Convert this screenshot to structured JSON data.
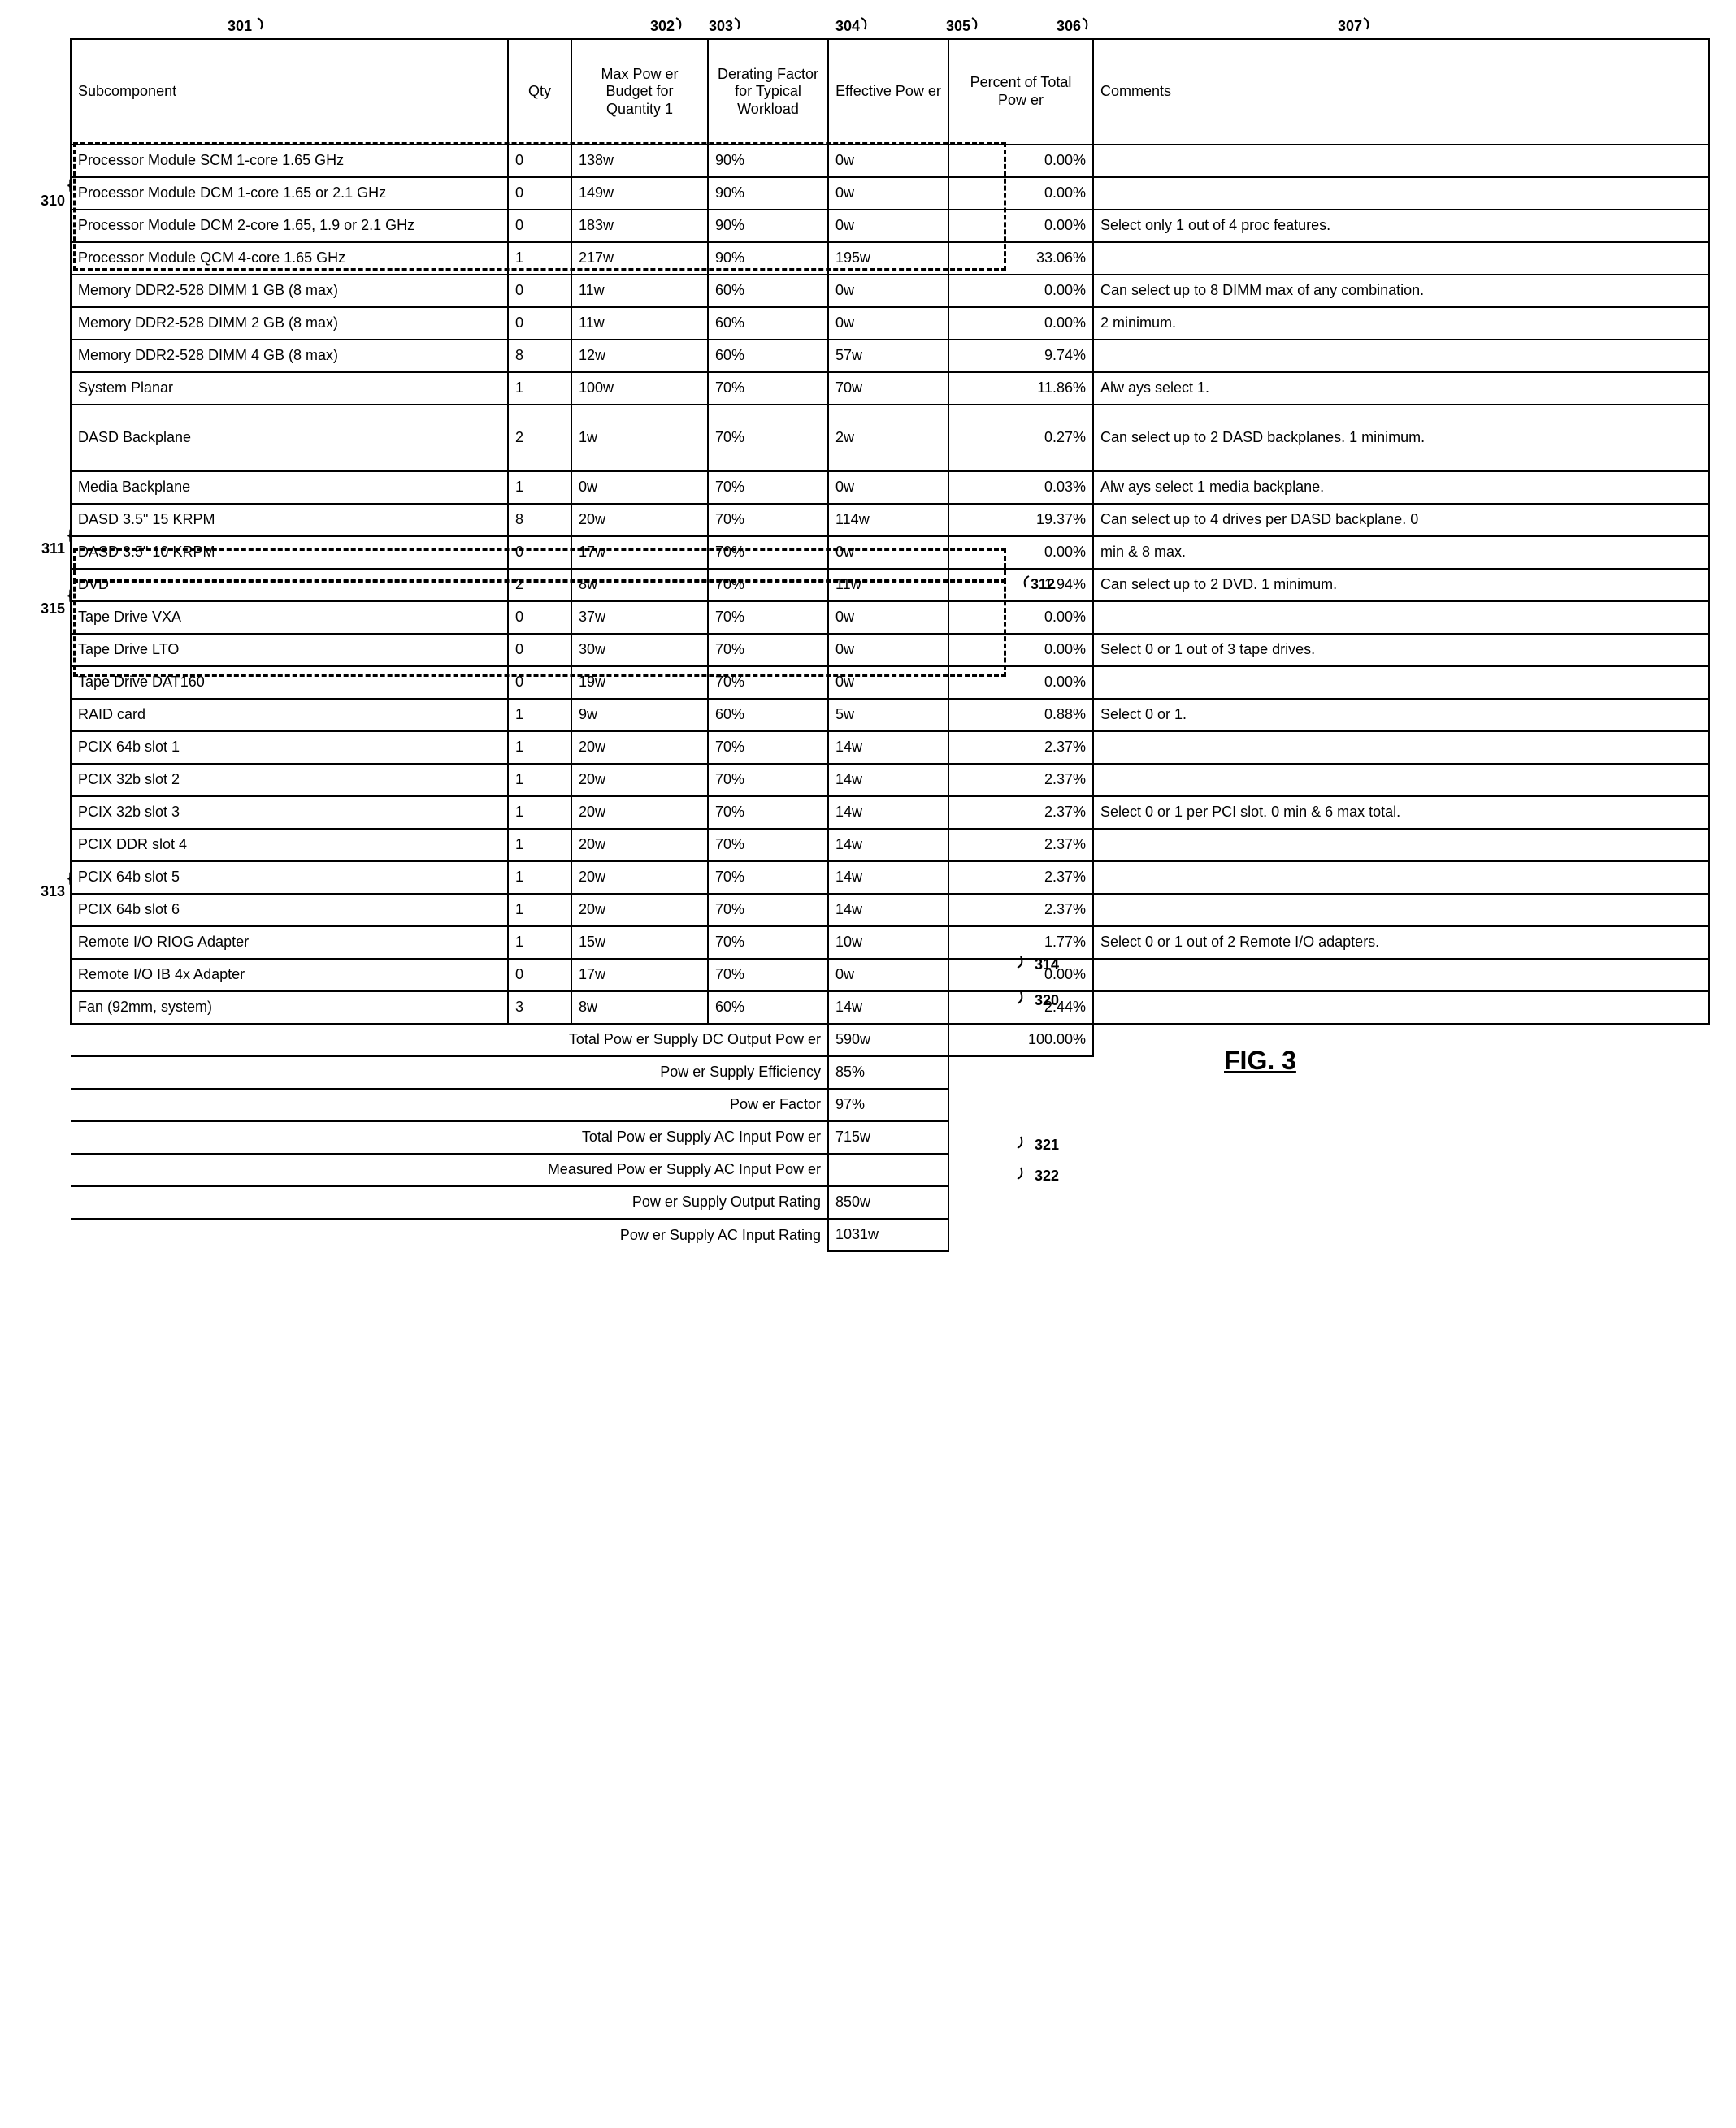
{
  "header_refs": {
    "301": "301",
    "302": "302",
    "303": "303",
    "304": "304",
    "305": "305",
    "306": "306",
    "307": "307"
  },
  "headers": {
    "sub": "Subcomponent",
    "qty": "Qty",
    "max": "Max Pow er Budget for Quantity 1",
    "der": "Derating Factor for Typical Workload",
    "eff": "Effective Pow er",
    "pct": "Percent of Total Pow er",
    "com": "Comments"
  },
  "left_refs": {
    "310": "310",
    "311": "311",
    "315": "315",
    "313": "313"
  },
  "inline_refs": {
    "312": "312",
    "314": "314",
    "320": "320",
    "321": "321",
    "322": "322"
  },
  "fig": "FIG. 3",
  "rows": [
    {
      "sub": "Processor Module SCM 1-core 1.65 GHz",
      "qty": "0",
      "max": "138w",
      "der": "90%",
      "eff": "0w",
      "pct": "0.00%",
      "com": ""
    },
    {
      "sub": "Processor Module DCM 1-core 1.65 or 2.1 GHz",
      "qty": "0",
      "max": "149w",
      "der": "90%",
      "eff": "0w",
      "pct": "0.00%",
      "com": ""
    },
    {
      "sub": "Processor Module DCM 2-core 1.65, 1.9 or 2.1 GHz",
      "qty": "0",
      "max": "183w",
      "der": "90%",
      "eff": "0w",
      "pct": "0.00%",
      "com": "Select only 1 out of 4 proc features."
    },
    {
      "sub": "Processor Module QCM 4-core 1.65 GHz",
      "qty": "1",
      "max": "217w",
      "der": "90%",
      "eff": "195w",
      "pct": "33.06%",
      "com": ""
    },
    {
      "sub": "Memory DDR2-528 DIMM 1 GB (8 max)",
      "qty": "0",
      "max": "11w",
      "der": "60%",
      "eff": "0w",
      "pct": "0.00%",
      "com": "Can select up to 8 DIMM max of any combination."
    },
    {
      "sub": "Memory DDR2-528 DIMM 2 GB (8 max)",
      "qty": "0",
      "max": "11w",
      "der": "60%",
      "eff": "0w",
      "pct": "0.00%",
      "com": "2 minimum."
    },
    {
      "sub": "Memory DDR2-528 DIMM 4 GB (8 max)",
      "qty": "8",
      "max": "12w",
      "der": "60%",
      "eff": "57w",
      "pct": "9.74%",
      "com": ""
    },
    {
      "sub": "System Planar",
      "qty": "1",
      "max": "100w",
      "der": "70%",
      "eff": "70w",
      "pct": "11.86%",
      "com": "Alw ays select 1."
    },
    {
      "sub": "DASD Backplane",
      "qty": "2",
      "max": "1w",
      "der": "70%",
      "eff": "2w",
      "pct": "0.27%",
      "com": "Can select up to 2 DASD backplanes. 1 minimum.",
      "tall": true
    },
    {
      "sub": "Media Backplane",
      "qty": "1",
      "max": "0w",
      "der": "70%",
      "eff": "0w",
      "pct": "0.03%",
      "com": "Alw ays select 1 media backplane."
    },
    {
      "sub": "DASD 3.5\" 15 KRPM",
      "qty": "8",
      "max": "20w",
      "der": "70%",
      "eff": "114w",
      "pct": "19.37%",
      "com": "Can select up to 4 drives per DASD backplane. 0"
    },
    {
      "sub": "DASD 3.5\" 10 KRPM",
      "qty": "0",
      "max": "17w",
      "der": "70%",
      "eff": "0w",
      "pct": "0.00%",
      "com": "min & 8 max."
    },
    {
      "sub": "DVD",
      "qty": "2",
      "max": "8w",
      "der": "70%",
      "eff": "11w",
      "pct": "1.94%",
      "com": "Can select up to 2 DVD. 1 minimum."
    },
    {
      "sub": "Tape Drive VXA",
      "qty": "0",
      "max": "37w",
      "der": "70%",
      "eff": "0w",
      "pct": "0.00%",
      "com": ""
    },
    {
      "sub": "Tape Drive LTO",
      "qty": "0",
      "max": "30w",
      "der": "70%",
      "eff": "0w",
      "pct": "0.00%",
      "com": "Select 0 or 1 out of 3 tape drives."
    },
    {
      "sub": "Tape Drive DAT160",
      "qty": "0",
      "max": "19w",
      "der": "70%",
      "eff": "0w",
      "pct": "0.00%",
      "com": ""
    },
    {
      "sub": "RAID card",
      "qty": "1",
      "max": "9w",
      "der": "60%",
      "eff": "5w",
      "pct": "0.88%",
      "com": "Select 0 or 1."
    },
    {
      "sub": "PCIX 64b slot 1",
      "qty": "1",
      "max": "20w",
      "der": "70%",
      "eff": "14w",
      "pct": "2.37%",
      "com": ""
    },
    {
      "sub": "PCIX 32b slot 2",
      "qty": "1",
      "max": "20w",
      "der": "70%",
      "eff": "14w",
      "pct": "2.37%",
      "com": ""
    },
    {
      "sub": "PCIX 32b slot 3",
      "qty": "1",
      "max": "20w",
      "der": "70%",
      "eff": "14w",
      "pct": "2.37%",
      "com": "Select 0 or 1 per PCI slot.  0 min & 6 max total."
    },
    {
      "sub": "PCIX DDR slot 4",
      "qty": "1",
      "max": "20w",
      "der": "70%",
      "eff": "14w",
      "pct": "2.37%",
      "com": ""
    },
    {
      "sub": "PCIX 64b slot 5",
      "qty": "1",
      "max": "20w",
      "der": "70%",
      "eff": "14w",
      "pct": "2.37%",
      "com": ""
    },
    {
      "sub": "PCIX 64b slot 6",
      "qty": "1",
      "max": "20w",
      "der": "70%",
      "eff": "14w",
      "pct": "2.37%",
      "com": ""
    },
    {
      "sub": "Remote I/O RIOG Adapter",
      "qty": "1",
      "max": "15w",
      "der": "70%",
      "eff": "10w",
      "pct": "1.77%",
      "com": "Select 0 or 1 out of 2 Remote I/O adapters."
    },
    {
      "sub": "Remote I/O IB 4x Adapter",
      "qty": "0",
      "max": "17w",
      "der": "70%",
      "eff": "0w",
      "pct": "0.00%",
      "com": ""
    },
    {
      "sub": "Fan (92mm, system)",
      "qty": "3",
      "max": "8w",
      "der": "60%",
      "eff": "14w",
      "pct": "2.44%",
      "com": ""
    }
  ],
  "summaries": [
    {
      "label": "Total Pow er Supply DC Output Pow er",
      "eff": "590w",
      "pct": "100.00%"
    },
    {
      "label": "Pow er Supply Efficiency",
      "eff": "85%"
    },
    {
      "label": "Pow er Factor",
      "eff": "97%"
    },
    {
      "label": "Total Pow er Supply AC Input Pow er",
      "eff": "715w"
    },
    {
      "label": "Measured Pow er Supply AC Input Pow er",
      "eff": ""
    },
    {
      "label": "Pow er Supply Output Rating",
      "eff": "850w"
    },
    {
      "label": "Pow er Supply AC Input Rating",
      "eff": "1031w"
    }
  ]
}
